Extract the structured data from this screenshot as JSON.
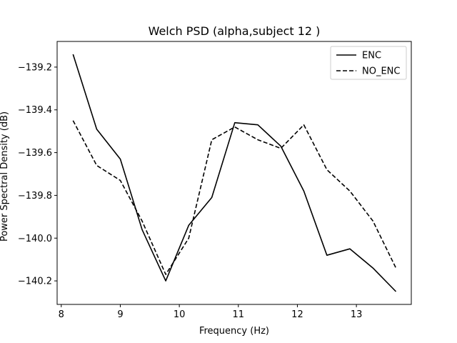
{
  "chart_data": {
    "type": "line",
    "title": "Welch PSD (alpha,subject 12 )",
    "xlabel": "Frequency (Hz)",
    "ylabel": "Power Spectral Density (dB)",
    "xlim": [
      7.93,
      13.93
    ],
    "ylim": [
      -140.31,
      -139.08
    ],
    "xticks": [
      8,
      9,
      10,
      11,
      12,
      13
    ],
    "yticks": [
      -139.2,
      -139.4,
      -139.6,
      -139.8,
      -140.0,
      -140.2
    ],
    "ytick_labels": [
      "−139.2",
      "−139.4",
      "−139.6",
      "−139.8",
      "−140.0",
      "−140.2"
    ],
    "x": [
      8.2,
      8.6,
      9.0,
      9.37,
      9.77,
      10.16,
      10.55,
      10.94,
      11.33,
      11.72,
      12.11,
      12.5,
      12.89,
      13.28,
      13.67
    ],
    "series": [
      {
        "name": "ENC",
        "style": "solid",
        "color": "#000000",
        "values": [
          -139.14,
          -139.49,
          -139.63,
          -139.96,
          -140.2,
          -139.94,
          -139.81,
          -139.46,
          -139.47,
          -139.57,
          -139.78,
          -140.08,
          -140.05,
          -140.14,
          -140.25
        ]
      },
      {
        "name": "NO_ENC",
        "style": "dashed",
        "color": "#000000",
        "values": [
          -139.45,
          -139.66,
          -139.73,
          -139.92,
          -140.17,
          -140.0,
          -139.54,
          -139.48,
          -139.54,
          -139.58,
          -139.47,
          -139.68,
          -139.78,
          -139.92,
          -140.14
        ]
      }
    ],
    "grid": false,
    "legend_position": "top-right"
  }
}
